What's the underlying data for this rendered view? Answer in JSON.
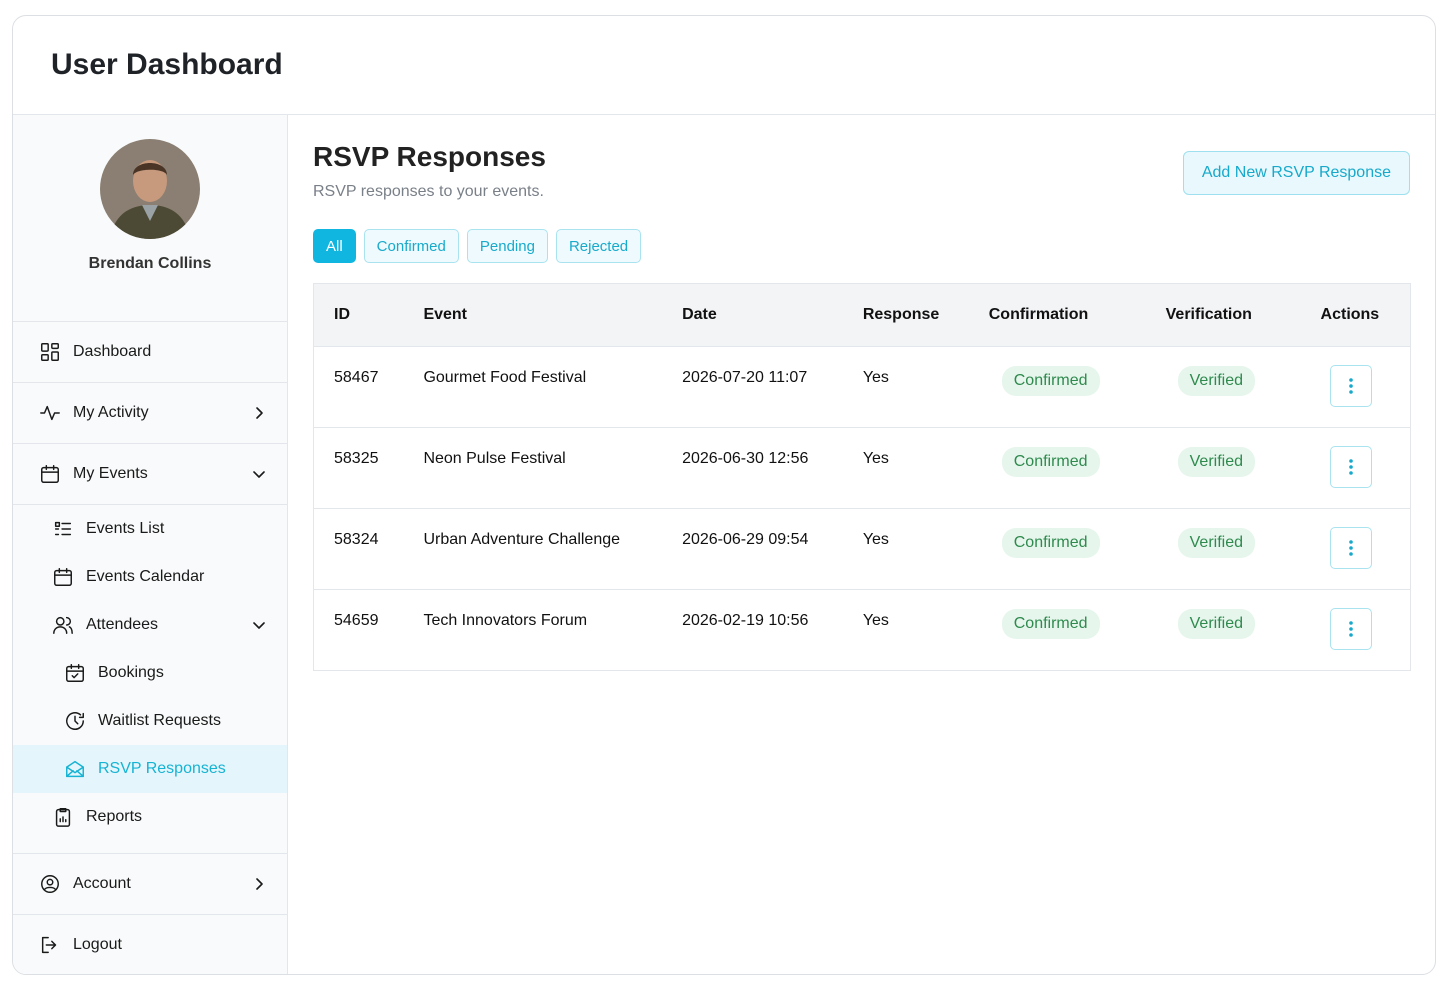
{
  "header": {
    "title": "User Dashboard"
  },
  "sidebar": {
    "user": {
      "name": "Brendan Collins"
    },
    "nav": [
      {
        "label": "Dashboard",
        "level": 0,
        "icon": "grid"
      },
      {
        "label": "My Activity",
        "level": 0,
        "icon": "pulse",
        "chevron": "right"
      },
      {
        "label": "My Events",
        "level": 0,
        "icon": "calendar",
        "chevron": "down"
      },
      {
        "label": "Events List",
        "level": 1,
        "icon": "list"
      },
      {
        "label": "Events Calendar",
        "level": 1,
        "icon": "calendar"
      },
      {
        "label": "Attendees",
        "level": 1,
        "icon": "users",
        "chevron": "down"
      },
      {
        "label": "Bookings",
        "level": 2,
        "icon": "check"
      },
      {
        "label": "Waitlist Requests",
        "level": 2,
        "icon": "clock"
      },
      {
        "label": "RSVP Responses",
        "level": 2,
        "icon": "mail",
        "active": true
      },
      {
        "label": "Reports",
        "level": 1,
        "icon": "clipboard"
      },
      {
        "label": "Account",
        "level": 0,
        "icon": "user",
        "chevron": "right"
      },
      {
        "label": "Logout",
        "level": 0,
        "icon": "logout"
      }
    ]
  },
  "main": {
    "title": "RSVP Responses",
    "subtitle": "RSVP responses to your events.",
    "button": "Add New RSVP Response",
    "filters": [
      "All",
      "Confirmed",
      "Pending",
      "Rejected"
    ],
    "table": {
      "headers": [
        "ID",
        "Event",
        "Date",
        "Response",
        "Confirmation",
        "Verification",
        "Actions"
      ],
      "rows": [
        [
          "58467",
          "Gourmet Food Festival",
          "2026-07-20 11:07",
          "Yes",
          "Confirmed",
          "Verified"
        ],
        [
          "58325",
          "Neon Pulse Festival",
          "2026-06-30 12:56",
          "Yes",
          "Confirmed",
          "Verified"
        ],
        [
          "58324",
          "Urban Adventure Challenge",
          "2026-06-29 09:54",
          "Yes",
          "Confirmed",
          "Verified"
        ],
        [
          "54659",
          "Tech Innovators Forum",
          "2026-02-19 10:56",
          "Yes",
          "Confirmed",
          "Verified"
        ]
      ]
    }
  }
}
